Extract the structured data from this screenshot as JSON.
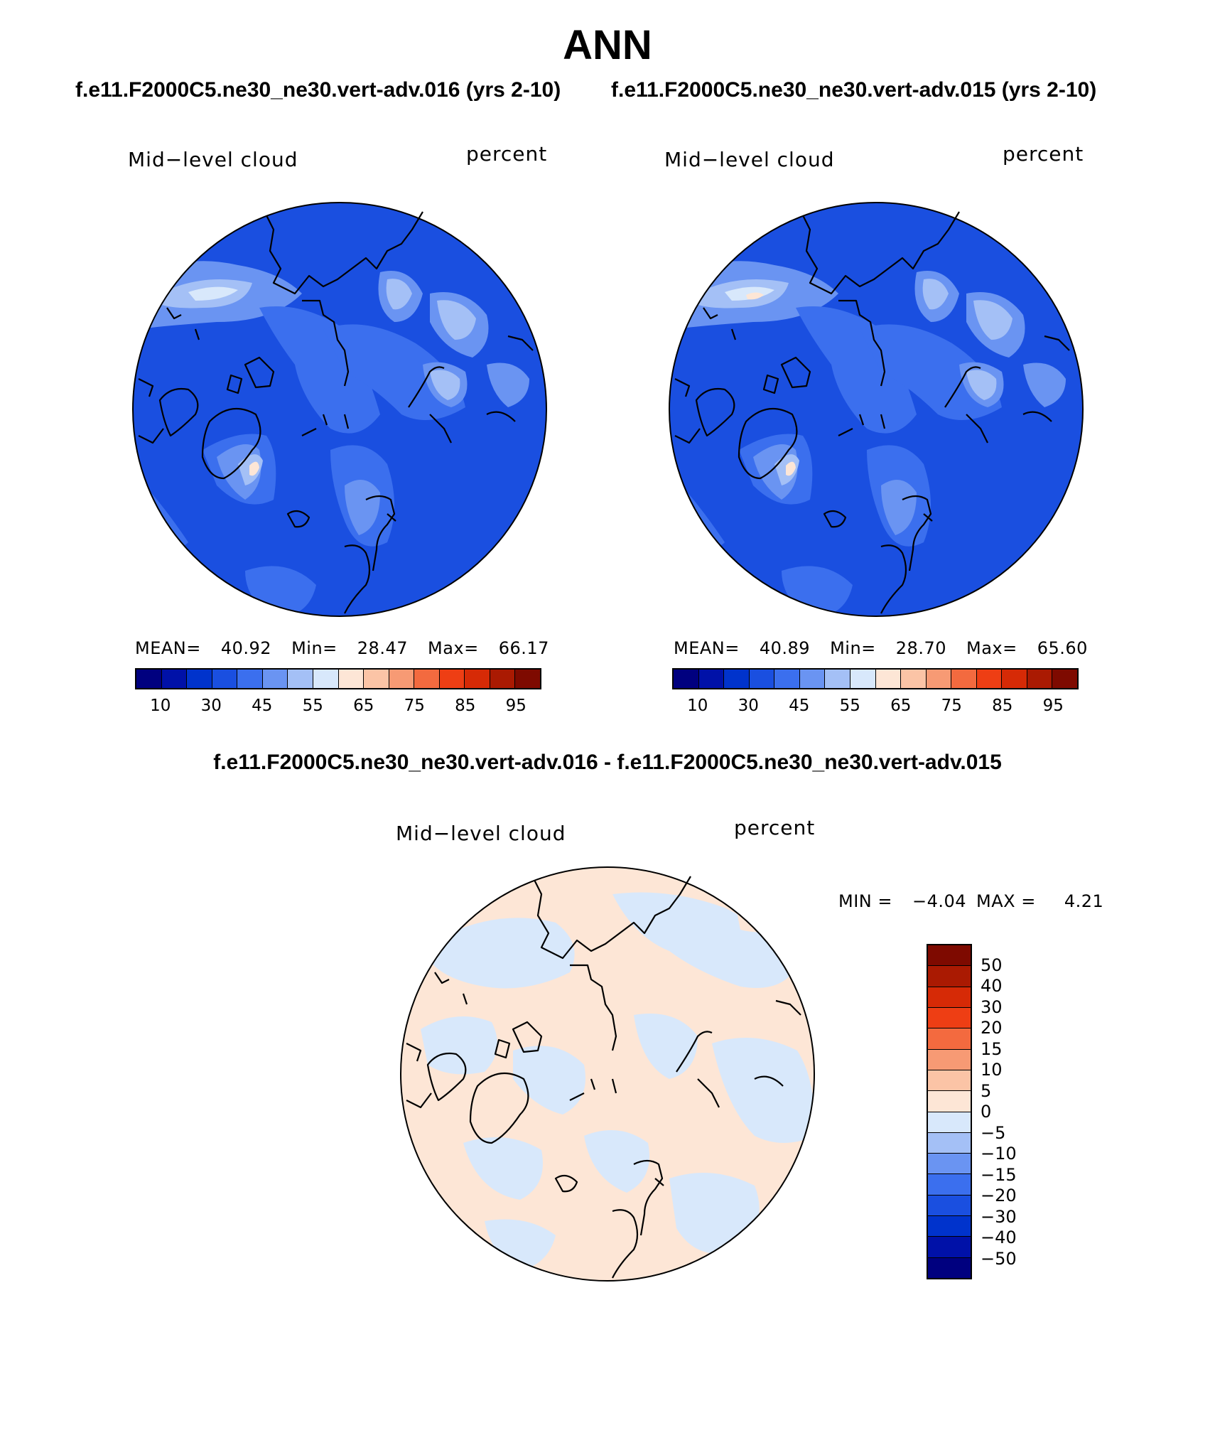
{
  "header": {
    "title": "ANN",
    "case1": "f.e11.F2000C5.ne30_ne30.vert-adv.016 (yrs 2-10)",
    "case2": "f.e11.F2000C5.ne30_ne30.vert-adv.015 (yrs 2-10)",
    "diff_title": "f.e11.F2000C5.ne30_ne30.vert-adv.016 - f.e11.F2000C5.ne30_ne30.vert-adv.015"
  },
  "panels": {
    "left": {
      "variable": "Mid−level cloud",
      "units": "percent",
      "mean_label": "MEAN=",
      "mean": "40.92",
      "min_label": "Min=",
      "min": "28.47",
      "max_label": "Max=",
      "max": "66.17"
    },
    "right": {
      "variable": "Mid−level cloud",
      "units": "percent",
      "mean_label": "MEAN=",
      "mean": "40.89",
      "min_label": "Min=",
      "min": "28.70",
      "max_label": "Max=",
      "max": "65.60"
    },
    "diff": {
      "variable": "Mid−level cloud",
      "units": "percent",
      "min_label": "MIN =",
      "min": "−4.04",
      "max_label": "MAX =",
      "max": "4.21"
    }
  },
  "colorbar_abs": {
    "ticks": [
      "10",
      "30",
      "45",
      "55",
      "65",
      "75",
      "85",
      "95"
    ],
    "colors": [
      "#00007f",
      "#0011a8",
      "#0033cc",
      "#1a4fe0",
      "#3b6fee",
      "#6a94f2",
      "#a4c0f6",
      "#d8e8fb",
      "#fde6d6",
      "#fbc4a6",
      "#f79a74",
      "#f36a3f",
      "#ee3e14",
      "#d62a06",
      "#aa1a02",
      "#7e0a00"
    ]
  },
  "colorbar_diff": {
    "ticks": [
      "50",
      "40",
      "30",
      "20",
      "15",
      "10",
      "5",
      "0",
      "−5",
      "−10",
      "−15",
      "−20",
      "−30",
      "−40",
      "−50"
    ],
    "colors": [
      "#7e0a00",
      "#aa1a02",
      "#d62a06",
      "#ee3e14",
      "#f36a3f",
      "#f79a74",
      "#fbc4a6",
      "#fde6d6",
      "#d8e8fb",
      "#a4c0f6",
      "#6a94f2",
      "#3b6fee",
      "#1a4fe0",
      "#0033cc",
      "#0011a8",
      "#00007f"
    ]
  }
}
